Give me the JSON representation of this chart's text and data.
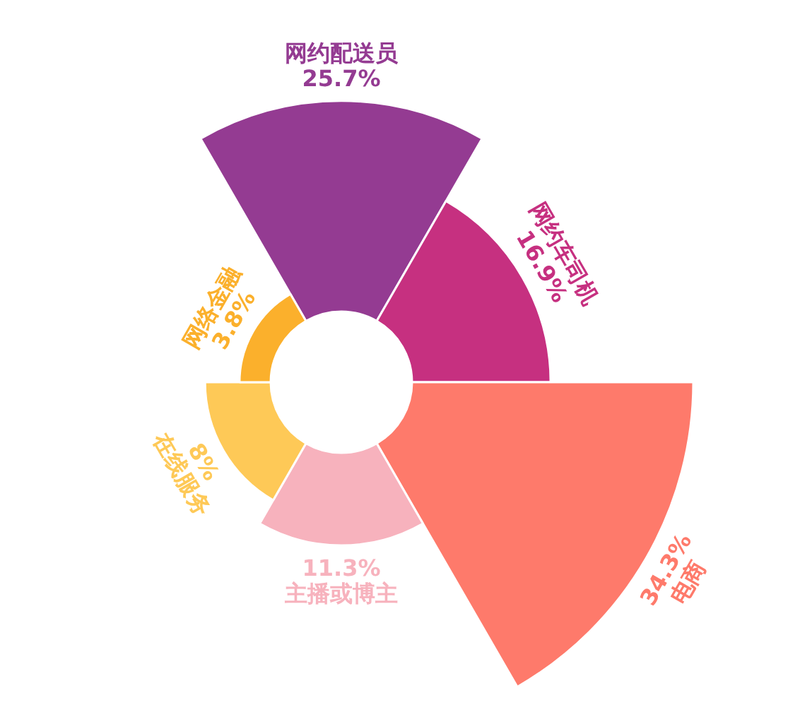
{
  "chart_data": {
    "type": "other",
    "categories": [
      "网约配送员",
      "网约车司机",
      "电商",
      "主播或博主",
      "在线服务",
      "网络金融"
    ],
    "values": [
      25.7,
      16.9,
      34.3,
      11.3,
      8,
      3.8
    ],
    "value_labels": [
      "25.7%",
      "16.9%",
      "34.3%",
      "11.3%",
      "8%",
      "3.8%"
    ],
    "colors": [
      "#943b92",
      "#c63080",
      "#fe7a6b",
      "#f7b2bd",
      "#fec957",
      "#fbb02c"
    ]
  }
}
